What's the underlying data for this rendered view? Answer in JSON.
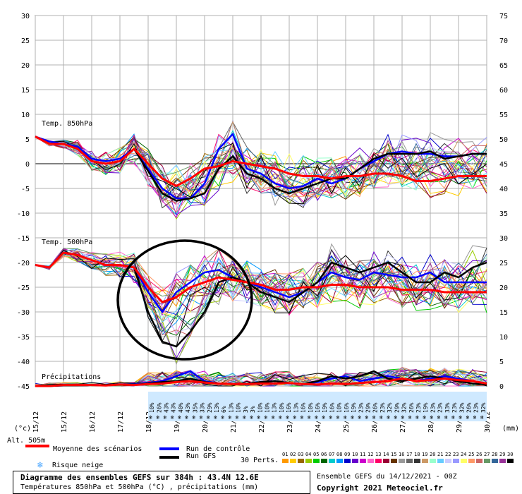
{
  "chart_data": {
    "type": "line",
    "title": "Diagramme des ensembles GEFS sur 384h : 43.4N 12.6E",
    "subtitle": "Températures 850hPa et 500hPa (°C) , précipitations (mm)",
    "run_info": "Ensemble GEFS du 14/12/2021 - 00Z",
    "copyright": "Copyright 2021 Meteociel.fr",
    "left_axis_unit": "(°c)",
    "right_axis_unit": "(mm)",
    "alt_label": "Alt. 505m",
    "y_left": {
      "min": -45,
      "max": 30,
      "ticks": [
        30,
        25,
        20,
        15,
        10,
        5,
        0,
        -5,
        -10,
        -15,
        -20,
        -25,
        -30,
        -35,
        -40,
        -45
      ]
    },
    "y_right": {
      "ticks": [
        75,
        70,
        65,
        60,
        55,
        50,
        45,
        40,
        35,
        30,
        25,
        20,
        15,
        10,
        5,
        0
      ]
    },
    "dates": [
      "15/12",
      "16/12",
      "17/12",
      "18/12",
      "19/12",
      "20/12",
      "21/12",
      "22/12",
      "23/12",
      "24/12",
      "25/12",
      "26/12",
      "27/12",
      "28/12",
      "29/12",
      "30/12"
    ],
    "first_date_label": "15/12",
    "panel_labels": {
      "t850": "Temp. 850hPa",
      "t500": "Temp. 500hPa",
      "precip": "Précipitations"
    },
    "snow_risk": [
      "10%",
      "26%",
      "43%",
      "43%",
      "40%",
      "43%",
      "35%",
      "33%",
      "29%",
      "13%",
      "6%",
      "13%",
      "10%",
      "3%",
      "3%",
      "10%",
      "10%",
      "13%",
      "10%",
      "16%",
      "13%",
      "16%",
      "10%",
      "16%",
      "19%",
      "16%",
      "10%",
      "16%",
      "19%",
      "23%",
      "29%",
      "26%",
      "23%",
      "32%",
      "29%",
      "32%",
      "26%",
      "23%",
      "19%",
      "23%",
      "23%",
      "33%",
      "23%",
      "32%",
      "26%",
      "23%",
      "32%"
    ],
    "series": [
      {
        "name": "Moyenne des scénarios",
        "role": "mean",
        "color": "#ff0000",
        "x": [
          0,
          0.5,
          1,
          1.5,
          2,
          2.5,
          3,
          3.5,
          4,
          4.5,
          5,
          5.5,
          6,
          6.5,
          7,
          7.5,
          8,
          8.5,
          9,
          9.5,
          10,
          10.5,
          11,
          11.5,
          12,
          12.5,
          13,
          13.5,
          14,
          14.5,
          15,
          15.5,
          16
        ],
        "t850": [
          5.5,
          4,
          4,
          3,
          0.5,
          0,
          0.5,
          3,
          0,
          -3,
          -4.5,
          -3,
          -1,
          -0.5,
          0.5,
          0,
          -0.5,
          -1,
          -2,
          -2.5,
          -2.5,
          -3,
          -2.5,
          -2.5,
          -2,
          -2,
          -2.5,
          -3.5,
          -3.5,
          -3,
          -2.5,
          -2.5,
          -2.5
        ],
        "t500": [
          -20.5,
          -21,
          -18,
          -18.5,
          -19.5,
          -20.5,
          -20.5,
          -21,
          -25,
          -28,
          -27,
          -25,
          -24,
          -23,
          -23.5,
          -24,
          -24.5,
          -25.5,
          -25.5,
          -25,
          -25,
          -24.5,
          -24.5,
          -25,
          -25,
          -25,
          -25.5,
          -25.5,
          -25.5,
          -26,
          -26,
          -26,
          -26
        ],
        "precip": [
          0,
          0,
          0.2,
          0.2,
          0.2,
          0.1,
          0.3,
          0.2,
          0.4,
          0.5,
          0.8,
          1,
          0.7,
          0.5,
          0.4,
          0.4,
          0.5,
          0.5,
          0.6,
          0.4,
          0.3,
          0.5,
          0.4,
          0.6,
          0.8,
          1,
          1.5,
          1,
          1.2,
          1.5,
          1.2,
          1,
          0.5
        ]
      },
      {
        "name": "Run de contrôle",
        "role": "control",
        "color": "#0000ff",
        "x": [
          0,
          0.5,
          1,
          1.5,
          2,
          2.5,
          3,
          3.5,
          4,
          4.5,
          5,
          5.5,
          6,
          6.5,
          7,
          7.5,
          8,
          8.5,
          9,
          9.5,
          10,
          10.5,
          11,
          11.5,
          12,
          12.5,
          13,
          13.5,
          14,
          14.5,
          15,
          15.5,
          16
        ],
        "t850": [
          5.5,
          4.5,
          4,
          3.5,
          1,
          0.5,
          1,
          3,
          -1,
          -5,
          -7,
          -7,
          -4,
          3,
          6,
          -1,
          -2,
          -4,
          -5,
          -4.5,
          -3,
          -4,
          -3,
          -1,
          0.5,
          2,
          2.5,
          2,
          2,
          1.5,
          1.5,
          2,
          2
        ],
        "t500": [
          -20.5,
          -21,
          -18,
          -18.5,
          -19.5,
          -20.5,
          -20.5,
          -21,
          -26,
          -30,
          -26,
          -24,
          -22,
          -21.5,
          -23,
          -24,
          -25,
          -26,
          -27,
          -26,
          -24,
          -22,
          -23,
          -23.5,
          -22,
          -22.5,
          -23,
          -23,
          -22,
          -24,
          -24,
          -24,
          -24
        ],
        "precip": [
          0,
          0,
          0.1,
          0.2,
          0.2,
          0.1,
          0.3,
          0.3,
          0.6,
          1,
          2,
          3,
          1,
          0.5,
          0.4,
          0.5,
          0.8,
          1,
          0.6,
          0.4,
          0.8,
          1.5,
          2,
          1,
          1.5,
          2,
          1.5,
          1,
          1.5,
          2,
          1.5,
          1,
          0.5
        ]
      },
      {
        "name": "Run GFS",
        "role": "gfs",
        "color": "#000000",
        "x": [
          0,
          0.5,
          1,
          1.5,
          2,
          2.5,
          3,
          3.5,
          4,
          4.5,
          5,
          5.5,
          6,
          6.5,
          7,
          7.5,
          8,
          8.5,
          9,
          9.5,
          10,
          10.5,
          11,
          11.5,
          12,
          12.5,
          13,
          13.5,
          14,
          14.5,
          15,
          15.5,
          16
        ],
        "t850": [
          5.5,
          4,
          4,
          3,
          0.5,
          0,
          0.5,
          3,
          -1.5,
          -6,
          -7.5,
          -7,
          -6,
          -1,
          1.5,
          -2,
          -3,
          -5,
          -6,
          -5,
          -4,
          -3,
          -3,
          -1,
          1,
          2,
          2,
          2,
          2.5,
          1,
          1.5,
          2,
          2
        ],
        "t500": [
          -20.5,
          -21,
          -18,
          -18.5,
          -19.5,
          -20.5,
          -20.5,
          -21,
          -30,
          -36,
          -37,
          -34,
          -30,
          -24,
          -23,
          -24,
          -26,
          -27,
          -28,
          -26,
          -24,
          -20,
          -21,
          -22,
          -21,
          -20,
          -22,
          -24,
          -24,
          -22,
          -23,
          -21,
          -20
        ],
        "precip": [
          0,
          0,
          0.1,
          0.1,
          0.2,
          0.1,
          0.3,
          0.2,
          0.5,
          0.8,
          1,
          1.5,
          0.8,
          0.5,
          0.4,
          0.5,
          0.8,
          1,
          0.6,
          0.4,
          1,
          2,
          1.5,
          2,
          3,
          1.5,
          1,
          1.5,
          2,
          1.5,
          1,
          0.5,
          0.3
        ]
      }
    ],
    "perturbation_label": "30 Perts.",
    "perturbations": [
      "01",
      "02",
      "03",
      "04",
      "05",
      "06",
      "07",
      "08",
      "09",
      "10",
      "11",
      "12",
      "13",
      "14",
      "15",
      "16",
      "17",
      "18",
      "19",
      "20",
      "21",
      "22",
      "23",
      "24",
      "25",
      "26",
      "27",
      "28",
      "29",
      "30"
    ],
    "perturbation_colors": [
      "#ff9900",
      "#ffcc00",
      "#996600",
      "#99cc00",
      "#00cc00",
      "#006600",
      "#00cccc",
      "#0099ff",
      "#0000cc",
      "#6600cc",
      "#cc00cc",
      "#ff66cc",
      "#ff0066",
      "#990033",
      "#663300",
      "#999999",
      "#666666",
      "#333333",
      "#cc9966",
      "#99ffcc",
      "#66ccff",
      "#ccccff",
      "#9999ff",
      "#ffff66",
      "#ff9966",
      "#cc6666",
      "#669966",
      "#336699",
      "#993399",
      "#000000"
    ],
    "snow_label": "Risque neige",
    "colors": {
      "grid": "#b0b0b0",
      "zero_line": "#808080",
      "snow_band": "#cfe9ff",
      "snow_text": "#0000cc"
    }
  }
}
